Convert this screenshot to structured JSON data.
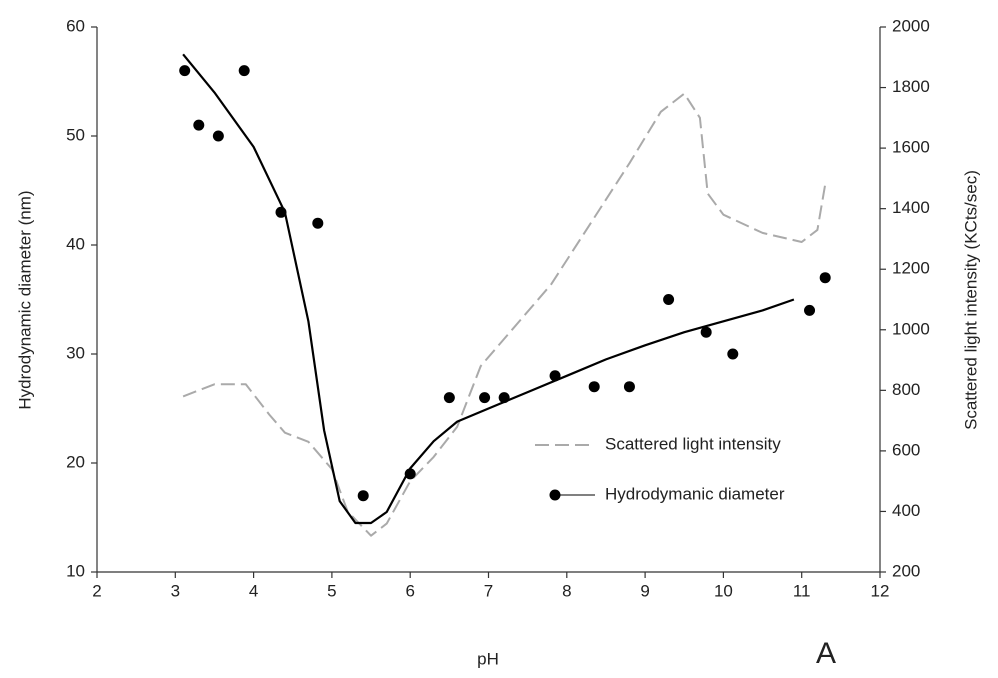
{
  "chart_data": {
    "type": "line",
    "x_label": "pH",
    "y_label": "Hydrodynamic diameter (nm)",
    "y2_label": "Scattered light intensity (KCts/sec)",
    "annotation": "A",
    "xlim": [
      2,
      12
    ],
    "xticks": [
      2,
      3,
      4,
      5,
      6,
      7,
      8,
      9,
      10,
      11,
      12
    ],
    "ylim": [
      10,
      60
    ],
    "yticks": [
      10,
      20,
      30,
      40,
      50,
      60
    ],
    "y2lim": [
      200,
      2000
    ],
    "y2ticks": [
      200,
      400,
      600,
      800,
      1000,
      1200,
      1400,
      1600,
      1800,
      2000
    ],
    "legend": "lower right",
    "series": [
      {
        "name": "Scattered light intensity",
        "color": "#aaaaaa",
        "style": "dashed",
        "axis": "y2",
        "x": [
          3.1,
          3.5,
          3.9,
          4.2,
          4.4,
          4.7,
          5.0,
          5.2,
          5.5,
          5.7,
          6.0,
          6.3,
          6.6,
          6.9,
          7.3,
          7.8,
          8.3,
          8.8,
          9.2,
          9.5,
          9.7,
          9.8,
          10.0,
          10.5,
          11.0,
          11.2,
          11.3
        ],
        "values": [
          780,
          820,
          820,
          720,
          660,
          630,
          540,
          400,
          320,
          360,
          500,
          580,
          680,
          880,
          1000,
          1150,
          1350,
          1550,
          1720,
          1780,
          1700,
          1450,
          1380,
          1320,
          1290,
          1330,
          1480
        ]
      },
      {
        "name": "Hydrodymanic diameter",
        "color": "#000000",
        "style": "markers",
        "x": [
          3.12,
          3.3,
          3.55,
          3.88,
          4.35,
          4.82,
          5.4,
          6.0,
          6.5,
          6.95,
          7.2,
          7.85,
          8.35,
          8.8,
          9.3,
          9.78,
          10.12,
          11.1,
          11.3
        ],
        "values": [
          56,
          51,
          50,
          56,
          43,
          42,
          17,
          19,
          26,
          26,
          26,
          28,
          27,
          27,
          35,
          32,
          30,
          34,
          37
        ]
      },
      {
        "color": "#000000",
        "style": "solid",
        "x": [
          3.1,
          3.5,
          4.0,
          4.4,
          4.7,
          4.9,
          5.1,
          5.3,
          5.5,
          5.7,
          6.0,
          6.3,
          6.6,
          7.0,
          7.5,
          8.0,
          8.5,
          9.0,
          9.5,
          10.0,
          10.5,
          10.9
        ],
        "values": [
          57.5,
          54,
          49,
          43,
          33,
          23,
          16.5,
          14.5,
          14.5,
          15.5,
          19.5,
          22,
          23.8,
          25,
          26.5,
          28,
          29.5,
          30.8,
          32,
          33,
          34,
          35
        ]
      }
    ]
  }
}
